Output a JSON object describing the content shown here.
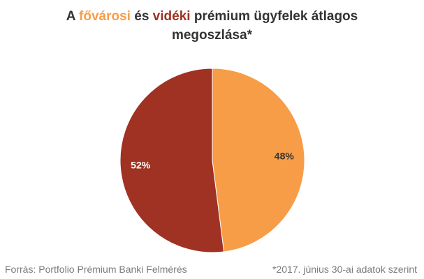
{
  "title": {
    "part1": "A ",
    "highlight1": "fővárosi",
    "part2": " és ",
    "highlight2": "vidéki",
    "part3": " prémium ügyfelek átlagos",
    "line2": "megoszlása*"
  },
  "colors": {
    "fovarosi": "#F79D48",
    "videki": "#A03223",
    "title_text": "#333333",
    "footer_text": "#7a7a7a"
  },
  "chart_data": {
    "type": "pie",
    "slices": [
      {
        "category": "fővárosi",
        "value": 48,
        "label": "48%",
        "color": "#F79D48",
        "label_color": "#333333"
      },
      {
        "category": "vidéki",
        "value": 52,
        "label": "52%",
        "color": "#A03223",
        "label_color": "#ffffff"
      }
    ]
  },
  "footer": {
    "source": "Forrás: Portfolio Prémium Banki Felmérés",
    "note": "*2017. június 30-ai adatok szerint"
  }
}
